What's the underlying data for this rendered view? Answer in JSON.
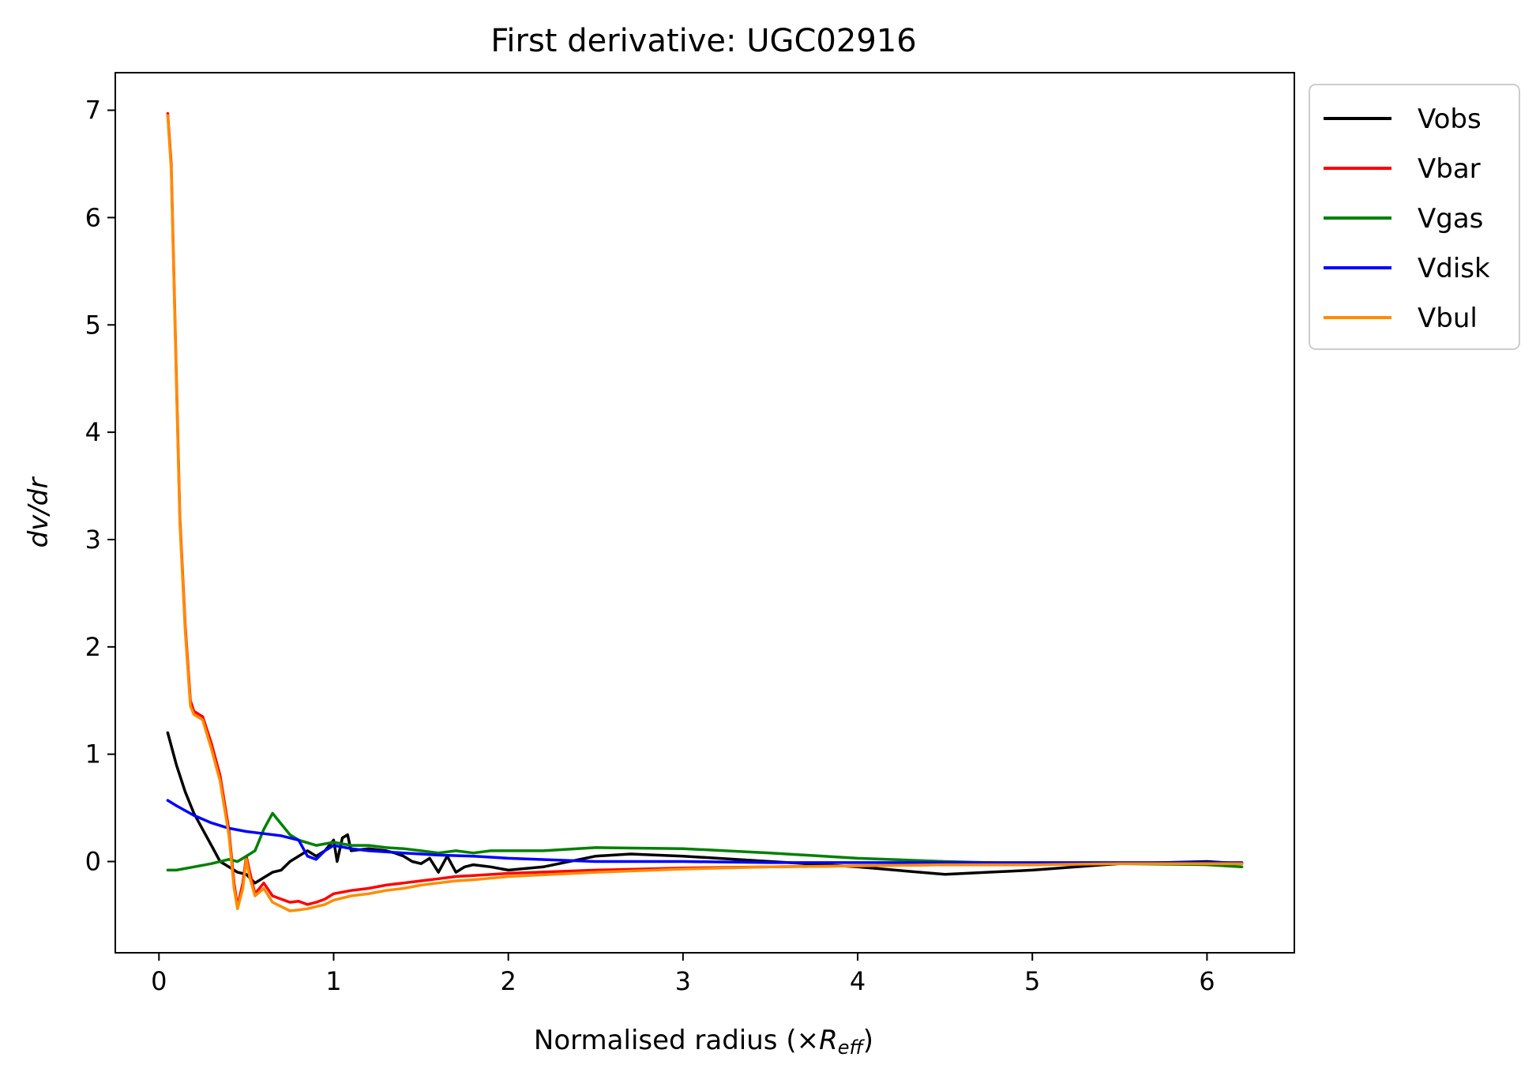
{
  "chart_data": {
    "type": "line",
    "title": "First derivative: UGC02916",
    "xlabel": "Normalised radius (×",
    "xlabel_symbol": "R",
    "xlabel_subscript": "eff",
    "xlabel_close": ")",
    "ylabel": "dv/dr",
    "xlim": [
      -0.25,
      6.5
    ],
    "ylim": [
      -0.85,
      7.35
    ],
    "xticks": [
      0,
      1,
      2,
      3,
      4,
      5,
      6
    ],
    "yticks": [
      0,
      1,
      2,
      3,
      4,
      5,
      6,
      7
    ],
    "grid": false,
    "legend_position": "outside-top-right",
    "series": [
      {
        "name": "Vobs",
        "color": "#000000",
        "points": [
          [
            0.05,
            1.2
          ],
          [
            0.1,
            0.9
          ],
          [
            0.15,
            0.65
          ],
          [
            0.2,
            0.45
          ],
          [
            0.25,
            0.3
          ],
          [
            0.3,
            0.15
          ],
          [
            0.35,
            0.0
          ],
          [
            0.4,
            -0.05
          ],
          [
            0.45,
            -0.1
          ],
          [
            0.5,
            -0.12
          ],
          [
            0.55,
            -0.2
          ],
          [
            0.6,
            -0.15
          ],
          [
            0.65,
            -0.1
          ],
          [
            0.7,
            -0.08
          ],
          [
            0.75,
            0.0
          ],
          [
            0.8,
            0.05
          ],
          [
            0.85,
            0.1
          ],
          [
            0.9,
            0.05
          ],
          [
            0.95,
            0.1
          ],
          [
            1.0,
            0.2
          ],
          [
            1.02,
            0.0
          ],
          [
            1.05,
            0.22
          ],
          [
            1.08,
            0.25
          ],
          [
            1.1,
            0.1
          ],
          [
            1.2,
            0.12
          ],
          [
            1.3,
            0.1
          ],
          [
            1.35,
            0.08
          ],
          [
            1.4,
            0.05
          ],
          [
            1.45,
            0.0
          ],
          [
            1.5,
            -0.02
          ],
          [
            1.55,
            0.03
          ],
          [
            1.6,
            -0.1
          ],
          [
            1.65,
            0.05
          ],
          [
            1.7,
            -0.1
          ],
          [
            1.75,
            -0.05
          ],
          [
            1.8,
            -0.03
          ],
          [
            1.9,
            -0.05
          ],
          [
            2.0,
            -0.08
          ],
          [
            2.2,
            -0.05
          ],
          [
            2.5,
            0.05
          ],
          [
            2.7,
            0.07
          ],
          [
            3.0,
            0.05
          ],
          [
            3.5,
            0.0
          ],
          [
            4.0,
            -0.05
          ],
          [
            4.5,
            -0.12
          ],
          [
            5.0,
            -0.08
          ],
          [
            5.5,
            -0.02
          ],
          [
            6.0,
            0.0
          ],
          [
            6.2,
            -0.02
          ]
        ]
      },
      {
        "name": "Vbar",
        "color": "#ff0000",
        "points": [
          [
            0.05,
            6.97
          ],
          [
            0.07,
            6.5
          ],
          [
            0.1,
            4.5
          ],
          [
            0.12,
            3.2
          ],
          [
            0.15,
            2.2
          ],
          [
            0.18,
            1.5
          ],
          [
            0.2,
            1.4
          ],
          [
            0.25,
            1.35
          ],
          [
            0.3,
            1.1
          ],
          [
            0.35,
            0.8
          ],
          [
            0.4,
            0.3
          ],
          [
            0.43,
            -0.2
          ],
          [
            0.45,
            -0.42
          ],
          [
            0.48,
            -0.2
          ],
          [
            0.5,
            0.05
          ],
          [
            0.52,
            -0.1
          ],
          [
            0.55,
            -0.3
          ],
          [
            0.6,
            -0.2
          ],
          [
            0.65,
            -0.32
          ],
          [
            0.7,
            -0.35
          ],
          [
            0.75,
            -0.38
          ],
          [
            0.8,
            -0.37
          ],
          [
            0.85,
            -0.4
          ],
          [
            0.9,
            -0.38
          ],
          [
            0.95,
            -0.35
          ],
          [
            1.0,
            -0.3
          ],
          [
            1.1,
            -0.27
          ],
          [
            1.2,
            -0.25
          ],
          [
            1.3,
            -0.22
          ],
          [
            1.4,
            -0.2
          ],
          [
            1.5,
            -0.18
          ],
          [
            1.6,
            -0.16
          ],
          [
            1.7,
            -0.14
          ],
          [
            1.8,
            -0.13
          ],
          [
            2.0,
            -0.11
          ],
          [
            2.5,
            -0.08
          ],
          [
            3.0,
            -0.06
          ],
          [
            3.5,
            -0.05
          ],
          [
            4.0,
            -0.04
          ],
          [
            4.5,
            -0.03
          ],
          [
            5.0,
            -0.03
          ],
          [
            5.5,
            -0.02
          ],
          [
            6.0,
            -0.02
          ],
          [
            6.2,
            -0.02
          ]
        ]
      },
      {
        "name": "Vgas",
        "color": "#008000",
        "points": [
          [
            0.05,
            -0.08
          ],
          [
            0.1,
            -0.08
          ],
          [
            0.2,
            -0.05
          ],
          [
            0.3,
            -0.02
          ],
          [
            0.4,
            0.02
          ],
          [
            0.45,
            0.0
          ],
          [
            0.5,
            0.05
          ],
          [
            0.55,
            0.1
          ],
          [
            0.6,
            0.3
          ],
          [
            0.65,
            0.45
          ],
          [
            0.7,
            0.35
          ],
          [
            0.75,
            0.25
          ],
          [
            0.8,
            0.2
          ],
          [
            0.9,
            0.15
          ],
          [
            1.0,
            0.18
          ],
          [
            1.1,
            0.15
          ],
          [
            1.2,
            0.15
          ],
          [
            1.3,
            0.13
          ],
          [
            1.4,
            0.12
          ],
          [
            1.5,
            0.1
          ],
          [
            1.6,
            0.08
          ],
          [
            1.7,
            0.1
          ],
          [
            1.8,
            0.08
          ],
          [
            1.9,
            0.1
          ],
          [
            2.0,
            0.1
          ],
          [
            2.2,
            0.1
          ],
          [
            2.5,
            0.13
          ],
          [
            3.0,
            0.12
          ],
          [
            3.5,
            0.08
          ],
          [
            4.0,
            0.03
          ],
          [
            4.5,
            0.0
          ],
          [
            5.0,
            -0.02
          ],
          [
            5.5,
            -0.02
          ],
          [
            6.0,
            -0.03
          ],
          [
            6.2,
            -0.05
          ]
        ]
      },
      {
        "name": "Vdisk",
        "color": "#0000ff",
        "points": [
          [
            0.05,
            0.57
          ],
          [
            0.1,
            0.52
          ],
          [
            0.2,
            0.43
          ],
          [
            0.3,
            0.36
          ],
          [
            0.4,
            0.31
          ],
          [
            0.5,
            0.28
          ],
          [
            0.6,
            0.26
          ],
          [
            0.7,
            0.24
          ],
          [
            0.8,
            0.2
          ],
          [
            0.85,
            0.05
          ],
          [
            0.9,
            0.02
          ],
          [
            0.95,
            0.1
          ],
          [
            1.0,
            0.15
          ],
          [
            1.1,
            0.12
          ],
          [
            1.2,
            0.1
          ],
          [
            1.3,
            0.09
          ],
          [
            1.4,
            0.08
          ],
          [
            1.5,
            0.07
          ],
          [
            1.6,
            0.06
          ],
          [
            1.8,
            0.05
          ],
          [
            2.0,
            0.03
          ],
          [
            2.5,
            0.0
          ],
          [
            3.0,
            0.0
          ],
          [
            3.5,
            -0.01
          ],
          [
            4.0,
            -0.01
          ],
          [
            4.5,
            -0.01
          ],
          [
            5.0,
            -0.01
          ],
          [
            5.5,
            -0.01
          ],
          [
            6.0,
            -0.01
          ],
          [
            6.2,
            -0.01
          ]
        ]
      },
      {
        "name": "Vbul",
        "color": "#ff8c00",
        "points": [
          [
            0.05,
            6.95
          ],
          [
            0.07,
            6.45
          ],
          [
            0.1,
            4.45
          ],
          [
            0.12,
            3.15
          ],
          [
            0.15,
            2.15
          ],
          [
            0.18,
            1.45
          ],
          [
            0.2,
            1.37
          ],
          [
            0.25,
            1.32
          ],
          [
            0.3,
            1.05
          ],
          [
            0.35,
            0.75
          ],
          [
            0.4,
            0.25
          ],
          [
            0.43,
            -0.25
          ],
          [
            0.45,
            -0.44
          ],
          [
            0.48,
            -0.25
          ],
          [
            0.5,
            0.02
          ],
          [
            0.52,
            -0.15
          ],
          [
            0.55,
            -0.32
          ],
          [
            0.6,
            -0.25
          ],
          [
            0.65,
            -0.38
          ],
          [
            0.7,
            -0.42
          ],
          [
            0.75,
            -0.46
          ],
          [
            0.8,
            -0.45
          ],
          [
            0.85,
            -0.44
          ],
          [
            0.9,
            -0.42
          ],
          [
            0.95,
            -0.4
          ],
          [
            1.0,
            -0.36
          ],
          [
            1.1,
            -0.32
          ],
          [
            1.2,
            -0.3
          ],
          [
            1.3,
            -0.27
          ],
          [
            1.4,
            -0.25
          ],
          [
            1.5,
            -0.22
          ],
          [
            1.6,
            -0.2
          ],
          [
            1.7,
            -0.18
          ],
          [
            1.8,
            -0.17
          ],
          [
            2.0,
            -0.14
          ],
          [
            2.5,
            -0.1
          ],
          [
            3.0,
            -0.07
          ],
          [
            3.5,
            -0.05
          ],
          [
            4.0,
            -0.04
          ],
          [
            4.5,
            -0.03
          ],
          [
            5.0,
            -0.03
          ],
          [
            5.5,
            -0.02
          ],
          [
            6.0,
            -0.02
          ],
          [
            6.2,
            -0.02
          ]
        ]
      }
    ]
  }
}
